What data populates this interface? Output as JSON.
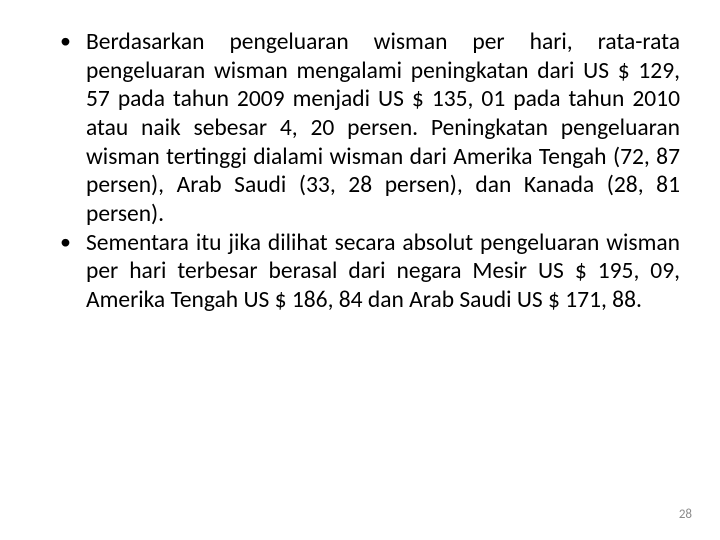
{
  "slide": {
    "bullets": [
      "Berdasarkan pengeluaran wisman per hari, rata-rata pengeluaran wisman mengalami peningkatan dari US $ 129, 57 pada tahun 2009 menjadi US $ 135, 01 pada tahun 2010 atau naik sebesar 4, 20 persen. Peningkatan pengeluaran wisman tertinggi dialami wisman dari Amerika Tengah (72, 87 persen), Arab Saudi (33, 28 persen), dan Kanada (28, 81 persen).",
      "Sementara itu jika dilihat secara absolut pengeluaran wisman per hari terbesar berasal dari negara Mesir US $ 195, 09, Amerika Tengah US $ 186, 84 dan Arab Saudi US $ 171, 88."
    ],
    "page_number": "28"
  },
  "style": {
    "background_color": "#ffffff",
    "text_color": "#000000",
    "page_num_color": "#8a8a8a",
    "body_fontsize": 23.5,
    "page_num_fontsize": 13,
    "line_height": 1.22,
    "text_align": "justify",
    "font_family": "Calibri, Arial, sans-serif"
  }
}
